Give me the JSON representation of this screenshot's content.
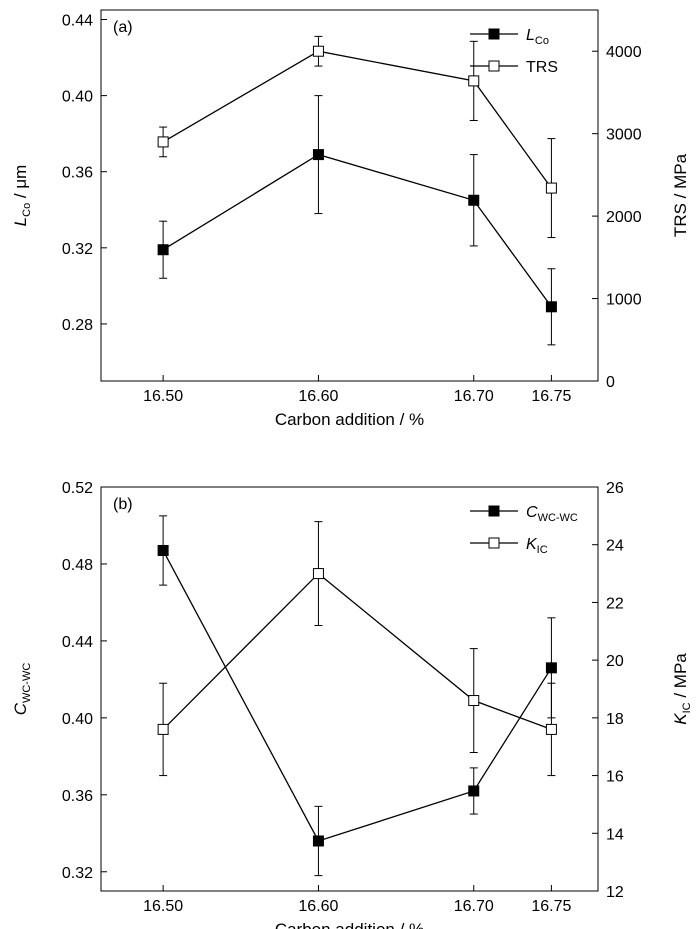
{
  "chart_data": [
    {
      "panel": "(a)",
      "type": "line",
      "x": [
        16.5,
        16.6,
        16.7,
        16.75
      ],
      "xlabel": "Carbon addition / %",
      "xticks": [
        "16.50",
        "16.60",
        "16.70",
        "16.75"
      ],
      "xlim": [
        16.46,
        16.78
      ],
      "y_left": {
        "label_main": "L",
        "label_sub": "Co",
        "label_unit": " / μm",
        "lim": [
          0.25,
          0.445
        ],
        "ticks": [
          "0.28",
          "0.32",
          "0.36",
          "0.40",
          "0.44"
        ]
      },
      "y_right": {
        "label": "TRS / MPa",
        "lim": [
          0,
          4500
        ],
        "ticks": [
          "0",
          "1000",
          "2000",
          "3000",
          "4000"
        ]
      },
      "series": [
        {
          "name_main": "L",
          "name_sub": "Co",
          "axis": "left",
          "marker": "filled-square",
          "values": [
            0.319,
            0.369,
            0.345,
            0.289
          ],
          "errors": [
            0.015,
            0.031,
            0.024,
            0.02
          ]
        },
        {
          "name_main": "TRS",
          "name_sub": "",
          "axis": "right",
          "marker": "open-square",
          "values": [
            2900,
            4000,
            3640,
            2340
          ],
          "errors": [
            180,
            180,
            480,
            600
          ]
        }
      ],
      "legend": "top-right",
      "grid": false
    },
    {
      "panel": "(b)",
      "type": "line",
      "x": [
        16.5,
        16.6,
        16.7,
        16.75
      ],
      "xlabel": "Carbon addition / %",
      "xticks": [
        "16.50",
        "16.60",
        "16.70",
        "16.75"
      ],
      "xlim": [
        16.46,
        16.78
      ],
      "y_left": {
        "label_main": "C",
        "label_sub": "WC-WC",
        "label_unit": "",
        "lim": [
          0.31,
          0.52
        ],
        "ticks": [
          "0.32",
          "0.36",
          "0.40",
          "0.44",
          "0.48",
          "0.52"
        ]
      },
      "y_right": {
        "label_main": "K",
        "label_sub": "IC",
        "label_unit": " / MPa",
        "lim": [
          12,
          26
        ],
        "ticks": [
          "12",
          "14",
          "16",
          "18",
          "20",
          "22",
          "24",
          "26"
        ]
      },
      "series": [
        {
          "name_main": "C",
          "name_sub": "WC-WC",
          "axis": "left",
          "marker": "filled-square",
          "values": [
            0.487,
            0.336,
            0.362,
            0.426
          ],
          "errors": [
            0.018,
            0.018,
            0.012,
            0.026
          ]
        },
        {
          "name_main": "K",
          "name_sub": "IC",
          "axis": "right",
          "marker": "open-square",
          "values": [
            17.6,
            23.0,
            18.6,
            17.6
          ],
          "errors": [
            1.6,
            1.8,
            1.8,
            1.6
          ]
        }
      ],
      "legend": "top-right",
      "grid": false
    }
  ]
}
